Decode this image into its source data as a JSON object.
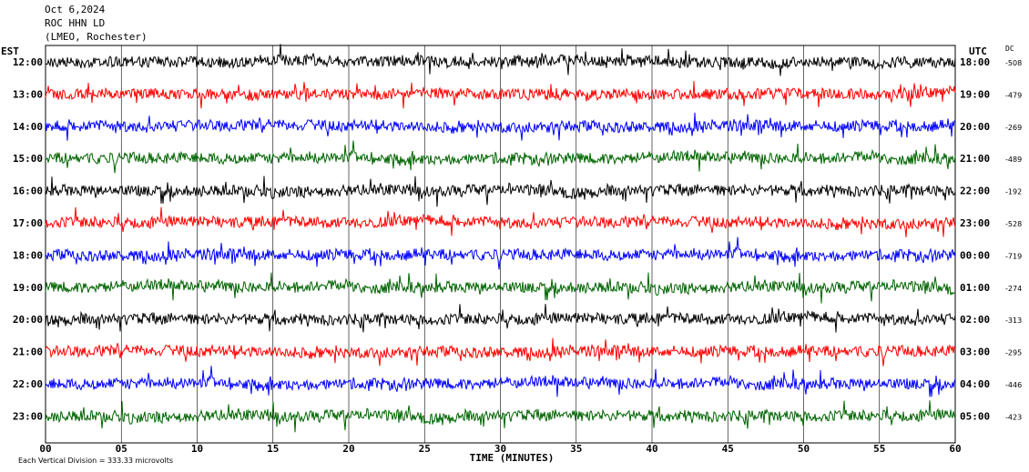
{
  "header": {
    "date": "Oct 6,2024",
    "station": "ROC HHN LD",
    "location": "(LMEO, Rochester)"
  },
  "left_timezone": "EST",
  "right_timezone": "UTC",
  "dc_label": "DC",
  "footer": {
    "scale_note": "Each Vertical Division = 333.33 microvolts"
  },
  "chart_data": {
    "type": "line",
    "title": "",
    "xlabel": "TIME (MINUTES)",
    "xlim": [
      0,
      60
    ],
    "x_ticks": [
      "00",
      "05",
      "10",
      "15",
      "20",
      "25",
      "30",
      "35",
      "40",
      "45",
      "50",
      "55",
      "60"
    ],
    "trace_colors": [
      "#000000",
      "#ff0000",
      "#0000ff",
      "#006400"
    ],
    "rows": [
      {
        "est": "12:00",
        "utc": "18:00",
        "dc": "-508"
      },
      {
        "est": "13:00",
        "utc": "19:00",
        "dc": "-479"
      },
      {
        "est": "14:00",
        "utc": "20:00",
        "dc": "-269"
      },
      {
        "est": "15:00",
        "utc": "21:00",
        "dc": "-489"
      },
      {
        "est": "16:00",
        "utc": "22:00",
        "dc": "-192"
      },
      {
        "est": "17:00",
        "utc": "23:00",
        "dc": "-528"
      },
      {
        "est": "18:00",
        "utc": "00:00",
        "dc": "-719"
      },
      {
        "est": "19:00",
        "utc": "01:00",
        "dc": "-274"
      },
      {
        "est": "20:00",
        "utc": "02:00",
        "dc": "-313"
      },
      {
        "est": "21:00",
        "utc": "03:00",
        "dc": "-295"
      },
      {
        "est": "22:00",
        "utc": "04:00",
        "dc": "-446"
      },
      {
        "est": "23:00",
        "utc": "05:00",
        "dc": "-423"
      }
    ]
  }
}
